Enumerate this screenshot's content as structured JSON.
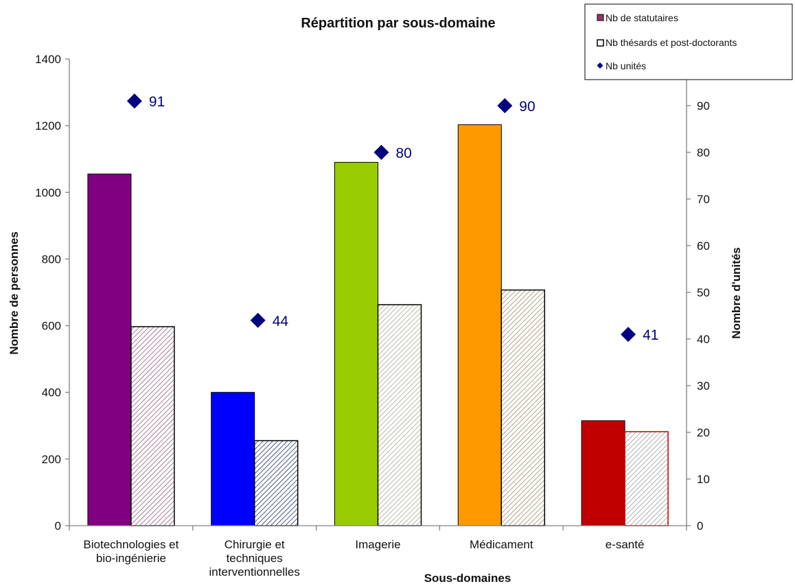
{
  "chart_data": {
    "type": "bar",
    "title": "Répartition par sous-domaine",
    "xlabel": "Sous-domaines",
    "ylabel": "Nombre de personnes",
    "y2label": "Nombre d'unités",
    "ylim": [
      0,
      1400
    ],
    "y2lim": [
      0,
      100
    ],
    "yticks": [
      "0",
      "200",
      "400",
      "600",
      "800",
      "1000",
      "1200",
      "1400"
    ],
    "y2ticks": [
      "0",
      "10",
      "20",
      "30",
      "40",
      "50",
      "60",
      "70",
      "80",
      "90"
    ],
    "categories": [
      [
        "Biotechnologies et",
        "bio-ingénierie"
      ],
      [
        "Chirurgie et",
        "techniques",
        "interventionnelles"
      ],
      [
        "Imagerie"
      ],
      [
        "Médicament"
      ],
      [
        "e-santé"
      ]
    ],
    "category_colors": [
      "#800080",
      "#0000ff",
      "#99cc00",
      "#ff9900",
      "#c00000"
    ],
    "hatch_colors": [
      "#8c5a80",
      "#1a2a66",
      "#a7a888",
      "#9a8a66",
      "#999999"
    ],
    "series": [
      {
        "name": "Nb de statutaires",
        "type": "bar",
        "values": [
          1055,
          400,
          1090,
          1203,
          315
        ]
      },
      {
        "name": "Nb thésards  et post-doctorants",
        "type": "bar-hatched",
        "values": [
          597,
          255,
          663,
          707,
          282
        ]
      },
      {
        "name": "Nb unités",
        "type": "marker",
        "axis": "y2",
        "values": [
          91,
          44,
          80,
          90,
          41
        ],
        "labels": [
          "91",
          "44",
          "80",
          "90",
          "41"
        ],
        "color": "#000080"
      }
    ],
    "legend": {
      "position": "top-right",
      "boxed": true
    },
    "grid": false
  }
}
